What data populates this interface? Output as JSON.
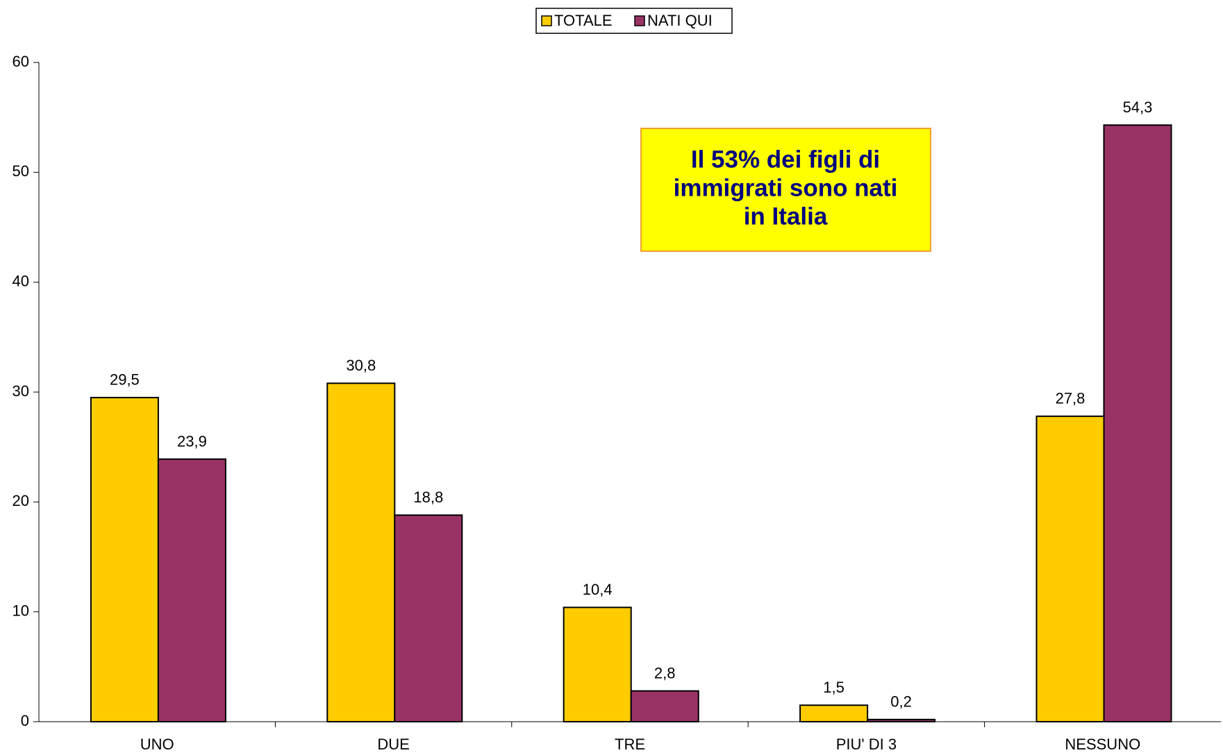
{
  "chart_data": {
    "type": "bar",
    "categories": [
      "UNO",
      "DUE",
      "TRE",
      "PIU' DI 3",
      "NESSUNO"
    ],
    "series": [
      {
        "name": "TOTALE",
        "color": "#FFCC00",
        "values": [
          29.5,
          30.8,
          10.4,
          1.5,
          27.8
        ],
        "value_labels": [
          "29,5",
          "30,8",
          "10,4",
          "1,5",
          "27,8"
        ]
      },
      {
        "name": "NATI QUI",
        "color": "#993366",
        "values": [
          23.9,
          18.8,
          2.8,
          0.2,
          54.3
        ],
        "value_labels": [
          "23,9",
          "18,8",
          "2,8",
          "0,2",
          "54,3"
        ]
      }
    ],
    "ylim": [
      0,
      60
    ],
    "yticks": [
      0,
      10,
      20,
      30,
      40,
      50,
      60
    ],
    "grid": false,
    "legend": "top",
    "annotation": [
      "Il 53% dei figli di",
      "immigrati sono nati",
      "in Italia"
    ]
  }
}
